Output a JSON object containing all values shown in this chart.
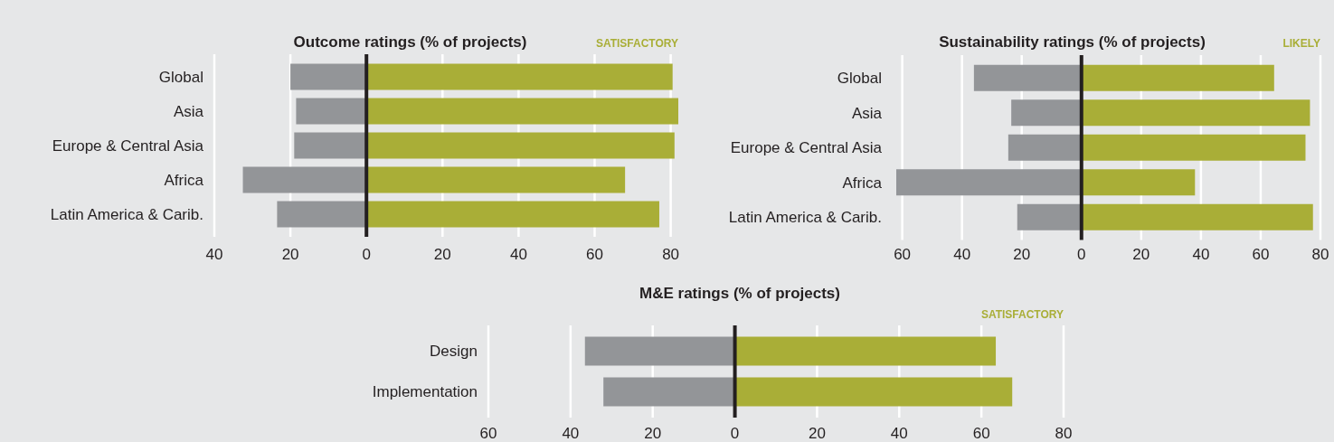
{
  "chart_data": [
    {
      "type": "bar",
      "orientation": "horizontal",
      "stacked": true,
      "title": "Outcome ratings (% of projects)",
      "categories": [
        "Global",
        "Asia",
        "Europe & Central Asia",
        "Africa",
        "Latin America & Carib."
      ],
      "series": [
        {
          "color": "#939598",
          "values": [
            -20,
            -18.5,
            -19,
            -32.5,
            -23.5
          ]
        },
        {
          "name": "SATISFACTORY",
          "color": "#a9ae37",
          "values": [
            80.5,
            82,
            81,
            68,
            77
          ]
        }
      ],
      "xlim": [
        -40,
        82
      ],
      "xticks": [
        {
          "value": -40,
          "label": "40"
        },
        {
          "value": -20,
          "label": "20"
        },
        0,
        20,
        40,
        60,
        80
      ],
      "grid": "x",
      "legend": "top right",
      "ref_lines": [
        {
          "axis": "x",
          "value": 0,
          "color": "#231f20"
        }
      ]
    },
    {
      "type": "bar",
      "orientation": "horizontal",
      "stacked": true,
      "title": "Sustainability ratings (% of projects)",
      "categories": [
        "Global",
        "Asia",
        "Europe & Central Asia",
        "Africa",
        "Latin America & Carib."
      ],
      "series": [
        {
          "color": "#939598",
          "values": [
            -36,
            -23.5,
            -24.5,
            -62,
            -21.5
          ]
        },
        {
          "name": "LIKELY",
          "color": "#a9ae37",
          "values": [
            64.5,
            76.5,
            75,
            38,
            77.5
          ]
        }
      ],
      "xlim": [
        -62,
        80
      ],
      "xticks": [
        {
          "value": -60,
          "label": "60"
        },
        {
          "value": -40,
          "label": "40"
        },
        {
          "value": -20,
          "label": "20"
        },
        0,
        20,
        40,
        60,
        80
      ],
      "grid": "x",
      "legend": "top right",
      "ref_lines": [
        {
          "axis": "x",
          "value": 0,
          "color": "#231f20"
        }
      ]
    },
    {
      "type": "bar",
      "orientation": "horizontal",
      "stacked": true,
      "title": "M&E ratings (% of projects)",
      "categories": [
        "Design",
        "Implementation"
      ],
      "series": [
        {
          "color": "#939598",
          "values": [
            -36.5,
            -32
          ]
        },
        {
          "name": "SATISFACTORY",
          "color": "#a9ae37",
          "values": [
            63.5,
            67.5
          ]
        }
      ],
      "xlim": [
        -60,
        80
      ],
      "xticks": [
        {
          "value": -60,
          "label": "60"
        },
        {
          "value": -40,
          "label": "40"
        },
        {
          "value": -20,
          "label": "20"
        },
        0,
        20,
        40,
        60,
        80
      ],
      "grid": "x",
      "legend": "top right",
      "ref_lines": [
        {
          "axis": "x",
          "value": 0,
          "color": "#231f20"
        }
      ]
    }
  ]
}
